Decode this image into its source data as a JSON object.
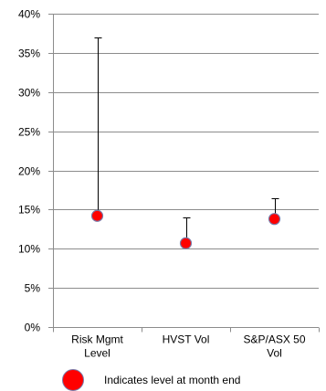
{
  "chart_data": {
    "type": "scatter",
    "subtype": "range-with-marker",
    "categories": [
      [
        "Risk Mgmt",
        "Level"
      ],
      [
        "HVST Vol"
      ],
      [
        "S&P/ASX 50",
        "Vol"
      ]
    ],
    "series": [
      {
        "name": "Indicates level at month end",
        "values": [
          14.2,
          10.7,
          13.8
        ],
        "marker_color": "#ff0000"
      }
    ],
    "range_high": [
      37.0,
      14.0,
      16.5
    ],
    "ylim": [
      0,
      40
    ],
    "yticks": [
      "0%",
      "5%",
      "10%",
      "15%",
      "20%",
      "25%",
      "30%",
      "35%",
      "40%"
    ],
    "grid": true,
    "legend_position": "bottom"
  },
  "legend": {
    "label": "Indicates level at month end",
    "marker_color": "#ff0000"
  },
  "colors": {
    "grid": "#8c8c8c",
    "axis": "#8c8c8c",
    "range_line": "#000000",
    "marker_stroke": "#7a7aa8"
  }
}
